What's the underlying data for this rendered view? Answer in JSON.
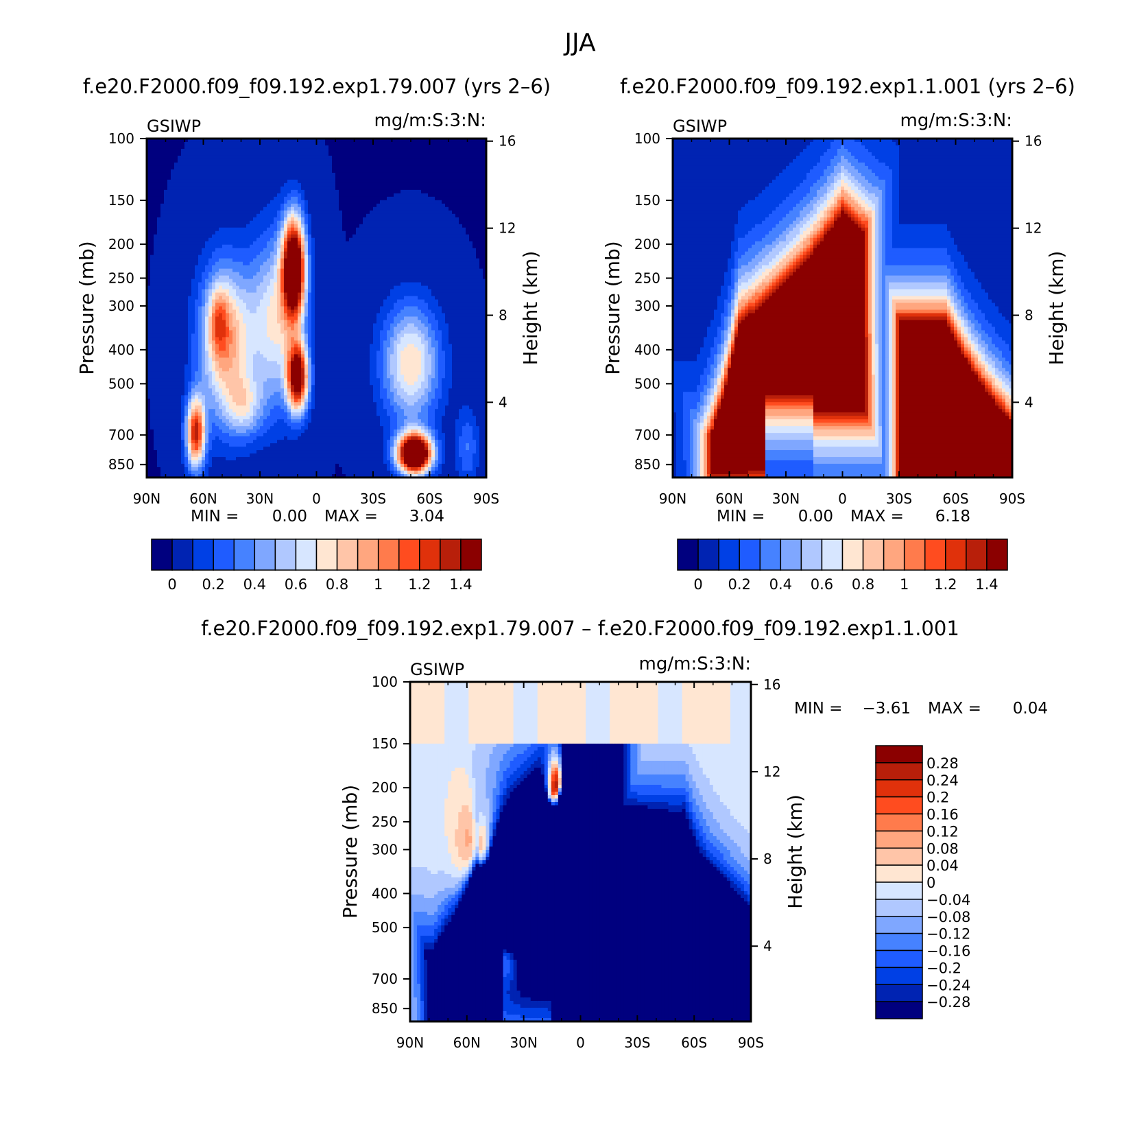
{
  "figure": {
    "title": "JJA"
  },
  "chart_data": [
    {
      "type": "heatmap",
      "title": "f.e20.F2000.f09_f09.192.exp1.79.007 (yrs 2–6)",
      "left_label": "GSIWP",
      "right_label": "mg/m:S:3:N:",
      "xlabel": "",
      "ylabel": "Pressure (mb)",
      "y2label": "Height (km)",
      "x_ticks": [
        "90N",
        "60N",
        "30N",
        "0",
        "30S",
        "60S",
        "90S"
      ],
      "y_ticks": [
        "100",
        "150",
        "200",
        "250",
        "300",
        "400",
        "500",
        "700",
        "850"
      ],
      "y2_ticks": [
        "16",
        "12",
        "8",
        "4"
      ],
      "min_label": "MIN =",
      "min_value": "0.00",
      "max_label": "MAX =",
      "max_value": "3.04",
      "colorbar_orientation": "horizontal",
      "colorbar_levels": [
        "0",
        "0.2",
        "0.4",
        "0.6",
        "0.8",
        "1",
        "1.2",
        "1.4"
      ],
      "colorbar_colors": [
        "#00007f",
        "#0023b2",
        "#0040e5",
        "#1f5cff",
        "#4682ff",
        "#7fa7ff",
        "#b0c8ff",
        "#d7e6ff",
        "#ffe6d2",
        "#ffc5a8",
        "#ffa67f",
        "#ff7b4c",
        "#ff4c1f",
        "#e0310b",
        "#b81f0a",
        "#8b0000"
      ],
      "features": [
        {
          "lat": 12,
          "p": 280,
          "value": 1.6,
          "shape": "narrow tall core"
        },
        {
          "lat": 48,
          "p": 380,
          "value": 0.95,
          "shape": "broad midlatitude band"
        },
        {
          "lat": 64,
          "p": 700,
          "value": 1.3,
          "shape": "low core"
        },
        {
          "lat": -52,
          "p": 800,
          "value": 1.6,
          "shape": "low core"
        },
        {
          "lat": -50,
          "p": 420,
          "value": 0.75,
          "shape": "southern band"
        }
      ]
    },
    {
      "type": "heatmap",
      "title": "f.e20.F2000.f09_f09.192.exp1.1.001 (yrs 2–6)",
      "left_label": "GSIWP",
      "right_label": "mg/m:S:3:N:",
      "xlabel": "",
      "ylabel": "Pressure (mb)",
      "y2label": "Height (km)",
      "x_ticks": [
        "90N",
        "60N",
        "30N",
        "0",
        "30S",
        "60S",
        "90S"
      ],
      "y_ticks": [
        "100",
        "150",
        "200",
        "250",
        "300",
        "400",
        "500",
        "700",
        "850"
      ],
      "y2_ticks": [
        "16",
        "12",
        "8",
        "4"
      ],
      "min_label": "MIN =",
      "min_value": "0.00",
      "max_label": "MAX =",
      "max_value": "6.18",
      "colorbar_orientation": "horizontal",
      "colorbar_levels": [
        "0",
        "0.2",
        "0.4",
        "0.6",
        "0.8",
        "1",
        "1.2",
        "1.4"
      ],
      "colorbar_colors": [
        "#00007f",
        "#0023b2",
        "#0040e5",
        "#1f5cff",
        "#4682ff",
        "#7fa7ff",
        "#b0c8ff",
        "#d7e6ff",
        "#ffe6d2",
        "#ffc5a8",
        "#ffa67f",
        "#ff7b4c",
        "#ff4c1f",
        "#e0310b",
        "#b81f0a",
        "#8b0000"
      ],
      "features": [
        {
          "lat": 30,
          "p": 350,
          "value": 3.0,
          "shape": "broad northern region"
        },
        {
          "lat": -58,
          "p": 550,
          "value": 3.0,
          "shape": "broad southern region"
        }
      ]
    },
    {
      "type": "heatmap",
      "title": "f.e20.F2000.f09_f09.192.exp1.79.007 – f.e20.F2000.f09_f09.192.exp1.1.001",
      "left_label": "GSIWP",
      "right_label": "mg/m:S:3:N:",
      "xlabel": "",
      "ylabel": "Pressure (mb)",
      "y2label": "Height (km)",
      "x_ticks": [
        "90N",
        "60N",
        "30N",
        "0",
        "30S",
        "60S",
        "90S"
      ],
      "y_ticks": [
        "100",
        "150",
        "200",
        "250",
        "300",
        "400",
        "500",
        "700",
        "850"
      ],
      "y2_ticks": [
        "16",
        "12",
        "8",
        "4"
      ],
      "min_label": "MIN =",
      "min_value": "−3.61",
      "max_label": "MAX =",
      "max_value": "0.04",
      "colorbar_orientation": "vertical",
      "colorbar_levels": [
        "0.28",
        "0.24",
        "0.2",
        "0.16",
        "0.12",
        "0.08",
        "0.04",
        "0",
        "−0.04",
        "−0.08",
        "−0.12",
        "−0.16",
        "−0.2",
        "−0.24",
        "−0.28"
      ],
      "colorbar_colors": [
        "#8b0000",
        "#b81f0a",
        "#e0310b",
        "#ff4c1f",
        "#ff7b4c",
        "#ffa67f",
        "#ffc5a8",
        "#ffe6d2",
        "#d7e6ff",
        "#b0c8ff",
        "#7fa7ff",
        "#4682ff",
        "#1f5cff",
        "#0040e5",
        "#0023b2",
        "#00007f"
      ],
      "features": [
        {
          "lat": 30,
          "p": 350,
          "value": -1.5,
          "shape": "broad northern deficit"
        },
        {
          "lat": -58,
          "p": 550,
          "value": -1.5,
          "shape": "broad southern deficit"
        },
        {
          "lat": 0,
          "p": 125,
          "value": 0.02,
          "shape": "upper-level near zero"
        }
      ]
    }
  ]
}
